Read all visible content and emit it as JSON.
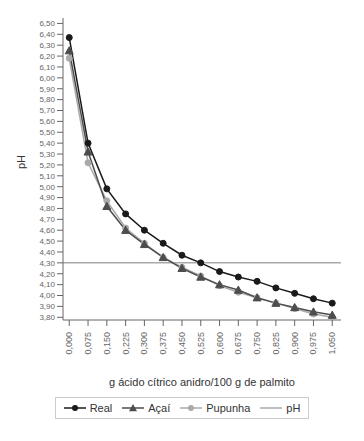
{
  "chart_data": {
    "type": "line",
    "xlabel": "g ácido cítrico anidro/100 g de palmito",
    "ylabel": "pH",
    "x": [
      0.0,
      0.075,
      0.15,
      0.225,
      0.3,
      0.375,
      0.45,
      0.525,
      0.6,
      0.675,
      0.75,
      0.825,
      0.9,
      0.975,
      1.05
    ],
    "series": [
      {
        "name": "Real",
        "color": "#1a1a1a",
        "marker": "circle",
        "values": [
          6.37,
          5.4,
          4.98,
          4.75,
          4.6,
          4.48,
          4.37,
          4.3,
          4.22,
          4.17,
          4.13,
          4.07,
          4.02,
          3.97,
          3.93
        ]
      },
      {
        "name": "Açaí",
        "color": "#4d4d4d",
        "marker": "triangle",
        "values": [
          6.25,
          5.32,
          4.82,
          4.6,
          4.47,
          4.35,
          4.25,
          4.17,
          4.1,
          4.05,
          3.98,
          3.93,
          3.89,
          3.85,
          3.82
        ]
      },
      {
        "name": "Pupunha",
        "color": "#aaaaaa",
        "marker": "circle",
        "values": [
          6.18,
          5.22,
          4.87,
          4.62,
          4.48,
          4.35,
          4.26,
          4.18,
          4.09,
          4.03,
          3.98,
          3.93,
          3.88,
          3.83,
          3.8
        ]
      }
    ],
    "reference_lines": [
      {
        "name": "pH",
        "y": 4.3,
        "color": "#aaaaaa"
      }
    ],
    "xlim": [
      -0.025,
      1.085
    ],
    "xticks": [
      {
        "value": 0.0,
        "label": "0,000"
      },
      {
        "value": 0.075,
        "label": "0,075"
      },
      {
        "value": 0.15,
        "label": "0,150"
      },
      {
        "value": 0.225,
        "label": "0,225"
      },
      {
        "value": 0.3,
        "label": "0,300"
      },
      {
        "value": 0.375,
        "label": "0,375"
      },
      {
        "value": 0.45,
        "label": "0,450"
      },
      {
        "value": 0.525,
        "label": "0,525"
      },
      {
        "value": 0.6,
        "label": "0,600"
      },
      {
        "value": 0.675,
        "label": "0,675"
      },
      {
        "value": 0.75,
        "label": "0,750"
      },
      {
        "value": 0.825,
        "label": "0,825"
      },
      {
        "value": 0.9,
        "label": "0,900"
      },
      {
        "value": 0.975,
        "label": "0,975"
      },
      {
        "value": 1.05,
        "label": "1,050"
      }
    ],
    "ylim": [
      3.775,
      6.55
    ],
    "yticks": [
      {
        "value": 3.8,
        "label": "3,80"
      },
      {
        "value": 3.9,
        "label": "3,90"
      },
      {
        "value": 4.0,
        "label": "4,00"
      },
      {
        "value": 4.1,
        "label": "4,10"
      },
      {
        "value": 4.2,
        "label": "4,20"
      },
      {
        "value": 4.3,
        "label": "4,30"
      },
      {
        "value": 4.4,
        "label": "4,40"
      },
      {
        "value": 4.5,
        "label": "4,50"
      },
      {
        "value": 4.6,
        "label": "4,60"
      },
      {
        "value": 4.7,
        "label": "4,70"
      },
      {
        "value": 4.8,
        "label": "4,80"
      },
      {
        "value": 4.9,
        "label": "4,90"
      },
      {
        "value": 5.0,
        "label": "5,00"
      },
      {
        "value": 5.1,
        "label": "5,10"
      },
      {
        "value": 5.2,
        "label": "5,20"
      },
      {
        "value": 5.3,
        "label": "5,30"
      },
      {
        "value": 5.4,
        "label": "5,40"
      },
      {
        "value": 5.5,
        "label": "5,50"
      },
      {
        "value": 5.6,
        "label": "5,60"
      },
      {
        "value": 5.7,
        "label": "5,70"
      },
      {
        "value": 5.8,
        "label": "5,80"
      },
      {
        "value": 5.9,
        "label": "5,90"
      },
      {
        "value": 6.0,
        "label": "6,00"
      },
      {
        "value": 6.1,
        "label": "6,10"
      },
      {
        "value": 6.2,
        "label": "6,20"
      },
      {
        "value": 6.3,
        "label": "6,30"
      },
      {
        "value": 6.4,
        "label": "6,40"
      },
      {
        "value": 6.5,
        "label": "6,50"
      }
    ],
    "grid": false,
    "legend": "bottom"
  }
}
